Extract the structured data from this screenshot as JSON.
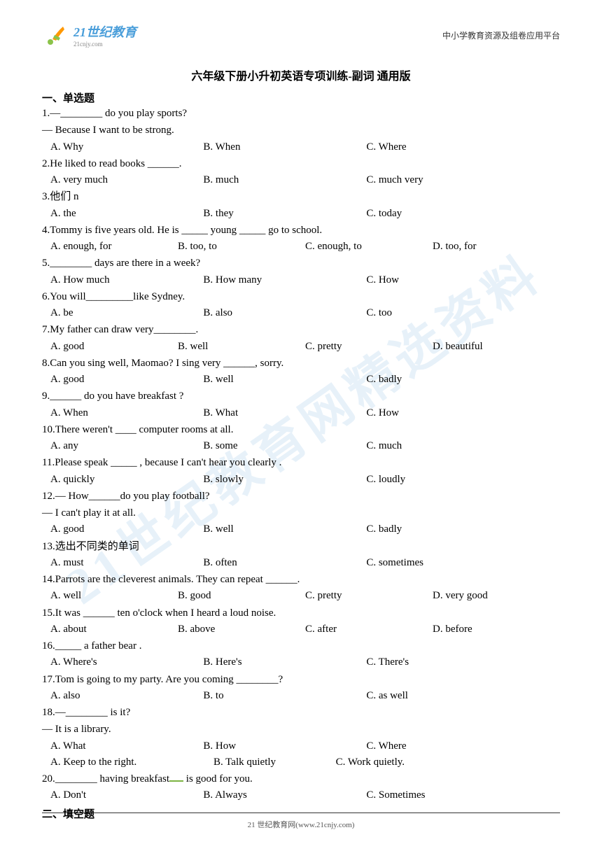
{
  "header": {
    "logo_main": "21世纪教育",
    "logo_sub": "21cnjy.com",
    "right_text": "中小学教育资源及组卷应用平台"
  },
  "title": "六年级下册小升初英语专项训练-副词 通用版",
  "section1": "一、单选题",
  "section2": "二、填空题",
  "watermark": "21世纪教育网精选资料",
  "footer": "21 世纪教育网(www.21cnjy.com)",
  "colors": {
    "logo_blue": "#4a9eda",
    "logo_green": "#8bc34a",
    "logo_orange": "#ff9800",
    "watermark": "rgba(160, 200, 230, 0.25)",
    "text": "#000000",
    "background": "#ffffff"
  },
  "questions": [
    {
      "n": "1",
      "text": ".—________ do you play sports?",
      "line2": " — Because I want to be strong.",
      "opts": [
        "A. Why",
        "B. When",
        "C. Where"
      ],
      "layout": 3
    },
    {
      "n": "2",
      "text": ".He liked to read books ______.",
      "opts": [
        "A. very much",
        "B. much",
        "C. much very"
      ],
      "layout": 3
    },
    {
      "n": "3",
      "text": ".他们    n",
      "opts": [
        "A. the",
        "B. they",
        "C. today"
      ],
      "layout": 3
    },
    {
      "n": "4",
      "text": ".Tommy is five years old. He is _____ young _____ go to school.",
      "opts": [
        "A. enough, for",
        "B. too, to",
        "C. enough, to",
        "D. too, for"
      ],
      "layout": 4
    },
    {
      "n": "5",
      "text": ".________ days are there in a week?",
      "opts": [
        "A. How much",
        "B. How many",
        "C. How"
      ],
      "layout": 3
    },
    {
      "n": "6",
      "text": ".You will_________like Sydney.",
      "opts": [
        "A. be",
        "B. also",
        "C. too"
      ],
      "layout": 3
    },
    {
      "n": "7",
      "text": ".My father can draw very________.",
      "opts": [
        "A. good",
        "B. well",
        "C. pretty",
        "D. beautiful"
      ],
      "layout": 4
    },
    {
      "n": "8",
      "text": ".Can you sing well, Maomao? I sing very ______, sorry.",
      "opts": [
        "A. good",
        "B. well",
        "C. badly"
      ],
      "layout": 3
    },
    {
      "n": "9",
      "text": ".______ do you have breakfast ?",
      "opts": [
        "A. When",
        "B. What",
        "C. How"
      ],
      "layout": 3
    },
    {
      "n": "10",
      "text": ".There weren't  ____ computer rooms at all.",
      "opts": [
        "A. any",
        "B. some",
        "C. much"
      ],
      "layout": 3
    },
    {
      "n": "11",
      "text": ".Please speak _____ , because I can't hear you clearly .",
      "opts": [
        "A. quickly",
        "B. slowly",
        "C. loudly"
      ],
      "layout": 3
    },
    {
      "n": "12",
      "text": ".— How______do you play football?",
      "line2": "— I can't play it at all.",
      "opts": [
        "A. good",
        "B. well",
        "C. badly"
      ],
      "layout": 3
    },
    {
      "n": "13",
      "text": ".选出不同类的单词",
      "opts": [
        "A. must",
        "B. often",
        "C. sometimes"
      ],
      "layout": 3
    },
    {
      "n": "14",
      "text": ".Parrots are the cleverest animals. They can repeat ______.",
      "opts": [
        "A. well",
        "B. good",
        "C. pretty",
        "D. very good"
      ],
      "layout": 4
    },
    {
      "n": "15",
      "text": ".It was ______ ten o'clock when I heard a loud noise.",
      "opts": [
        "A. about",
        "B. above",
        "C. after",
        "D. before"
      ],
      "layout": 4
    },
    {
      "n": "16",
      "text": "._____ a father bear .",
      "opts": [
        "A. Where's",
        "B. Here's",
        "C. There's"
      ],
      "layout": 3
    },
    {
      "n": "17",
      "text": ".Tom is going to my party. Are you coming ________?",
      "opts": [
        "A. also",
        "B. to",
        "C. as well"
      ],
      "layout": 3
    },
    {
      "n": "18",
      "text": ".—________ is it?",
      "line2": "— It is a library.",
      "opts": [
        "A. What",
        "B. How",
        "C. Where"
      ],
      "layout": 3
    },
    {
      "n": "19",
      "text": "",
      "opts": [
        "A. Keep to the right.",
        "B. Talk quietly",
        "C. Work quietly."
      ],
      "layout": "q19"
    },
    {
      "n": "20",
      "text": ".________ having breakfast    is good for you.",
      "opts": [
        "A. Don't",
        "B. Always",
        "C. Sometimes"
      ],
      "layout": 3,
      "green": true
    }
  ]
}
